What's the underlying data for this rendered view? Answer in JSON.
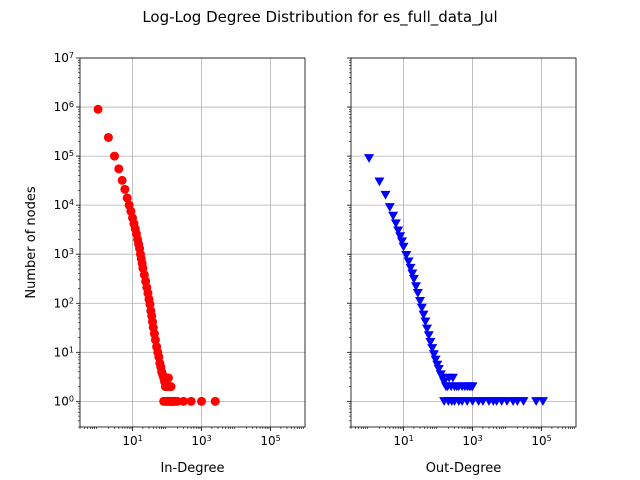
{
  "figure": {
    "title": "Log-Log Degree Distribution for es_full_data_Jul"
  },
  "chart_data": [
    {
      "type": "scatter",
      "xlabel": "In-Degree",
      "ylabel": "Number of nodes",
      "xscale": "log",
      "yscale": "log",
      "xlim": [
        0.3,
        1000000
      ],
      "ylim": [
        0.3,
        10000000
      ],
      "x_ticks": [
        10,
        1000,
        100000
      ],
      "x_tick_labels": [
        [
          "10",
          "1"
        ],
        [
          "10",
          "3"
        ],
        [
          "10",
          "5"
        ]
      ],
      "y_ticks": [
        1,
        10,
        100,
        1000,
        10000,
        100000,
        1000000,
        10000000
      ],
      "y_tick_labels": [
        [
          "10",
          "0"
        ],
        [
          "10",
          "1"
        ],
        [
          "10",
          "2"
        ],
        [
          "10",
          "3"
        ],
        [
          "10",
          "4"
        ],
        [
          "10",
          "5"
        ],
        [
          "10",
          "6"
        ],
        [
          "10",
          "7"
        ]
      ],
      "grid": true,
      "marker": "circle",
      "color": "#ff0000",
      "x": [
        1,
        2,
        3,
        4,
        5,
        6,
        7,
        8,
        9,
        10,
        11,
        12,
        13,
        14,
        15,
        16,
        17,
        18,
        19,
        20,
        22,
        24,
        26,
        28,
        30,
        32,
        34,
        36,
        38,
        40,
        43,
        46,
        50,
        54,
        58,
        62,
        66,
        70,
        75,
        80,
        85,
        90,
        95,
        100,
        105,
        110,
        115,
        120,
        125,
        130,
        80,
        90,
        100,
        110,
        120,
        130,
        140,
        150,
        160,
        180,
        200,
        300,
        500,
        1000,
        2500
      ],
      "y": [
        900000,
        240000,
        100000,
        55000,
        32000,
        21000,
        14000,
        10000,
        7500,
        5500,
        4200,
        3300,
        2600,
        2000,
        1600,
        1300,
        1000,
        800,
        650,
        520,
        380,
        280,
        210,
        160,
        120,
        95,
        70,
        55,
        42,
        32,
        24,
        18,
        13,
        10,
        8,
        6,
        5,
        4,
        3.5,
        3,
        2.5,
        2,
        3,
        2,
        2,
        3,
        2,
        2,
        1,
        2,
        1,
        1,
        1,
        1,
        1,
        1,
        1,
        1,
        1,
        1,
        1,
        1,
        1,
        1,
        1
      ]
    },
    {
      "type": "scatter",
      "xlabel": "Out-Degree",
      "ylabel": "",
      "xscale": "log",
      "yscale": "log",
      "xlim": [
        0.3,
        1000000
      ],
      "ylim": [
        0.3,
        10000000
      ],
      "x_ticks": [
        10,
        1000,
        100000
      ],
      "x_tick_labels": [
        [
          "10",
          "1"
        ],
        [
          "10",
          "3"
        ],
        [
          "10",
          "5"
        ]
      ],
      "y_ticks": [
        1,
        10,
        100,
        1000,
        10000,
        100000,
        1000000,
        10000000
      ],
      "y_tick_labels": [],
      "grid": true,
      "marker": "triangle-down",
      "color": "#0000ff",
      "x": [
        1,
        2,
        3,
        4,
        5,
        6,
        7,
        8,
        9,
        10,
        12,
        14,
        16,
        18,
        20,
        23,
        26,
        30,
        34,
        38,
        43,
        48,
        54,
        60,
        68,
        76,
        85,
        95,
        105,
        120,
        135,
        150,
        170,
        190,
        210,
        240,
        270,
        300,
        350,
        400,
        500,
        600,
        700,
        800,
        900,
        1000,
        150,
        200,
        250,
        300,
        400,
        500,
        700,
        1000,
        1500,
        2000,
        3000,
        4000,
        5000,
        7000,
        10000,
        15000,
        20000,
        30000,
        70000,
        110000
      ],
      "y": [
        90000,
        30000,
        16000,
        9000,
        6000,
        4200,
        3000,
        2300,
        1800,
        1400,
        950,
        700,
        520,
        400,
        310,
        220,
        160,
        110,
        80,
        58,
        42,
        30,
        22,
        16,
        12,
        9,
        7,
        5.5,
        4.5,
        3.5,
        3,
        2.5,
        2,
        2,
        3,
        2,
        3,
        2,
        2,
        2,
        2,
        2,
        2,
        2,
        2,
        2,
        1,
        1,
        1,
        1,
        1,
        1,
        1,
        1,
        1,
        1,
        1,
        1,
        1,
        1,
        1,
        1,
        1,
        1,
        1,
        1
      ]
    }
  ]
}
